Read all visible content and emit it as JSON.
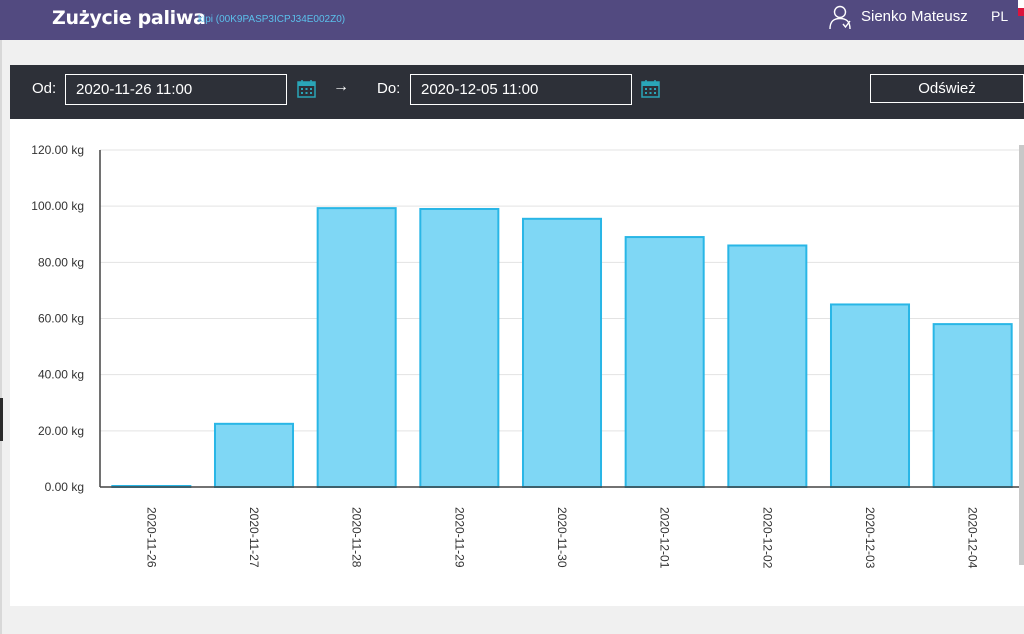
{
  "header": {
    "title": "Zużycie paliwa",
    "subtitle": "kipi (00K9PASP3ICPJ34E002Z0)",
    "user_name": "Sienko Mateusz",
    "language": "PL"
  },
  "toolbar": {
    "from_label": "Od:",
    "from_value": "2020-11-26 11:00",
    "arrow": "→",
    "to_label": "Do:",
    "to_value": "2020-12-05 11:00",
    "refresh_label": "Odśwież"
  },
  "colors": {
    "header_bg": "#524a80",
    "toolbar_bg": "#2d3038",
    "bar_fill": "#7fd7f5",
    "bar_stroke": "#29b6e6",
    "calendar_icon": "#2aa6b8"
  },
  "icons": [
    "user-icon",
    "calendar-icon",
    "arrow-right-icon"
  ],
  "chart_data": {
    "type": "bar",
    "title": "",
    "xlabel": "",
    "ylabel": "",
    "unit": "kg",
    "ylim": [
      0,
      120
    ],
    "yticks": [
      "0.00 kg",
      "20.00 kg",
      "40.00 kg",
      "60.00 kg",
      "80.00 kg",
      "100.00 kg",
      "120.00 kg"
    ],
    "grid": true,
    "categories": [
      "2020-11-26",
      "2020-11-27",
      "2020-11-28",
      "2020-11-29",
      "2020-11-30",
      "2020-12-01",
      "2020-12-02",
      "2020-12-03",
      "2020-12-04"
    ],
    "values": [
      0.3,
      22.5,
      99.3,
      99.0,
      95.5,
      89.0,
      86.0,
      65.0,
      58.0
    ]
  }
}
